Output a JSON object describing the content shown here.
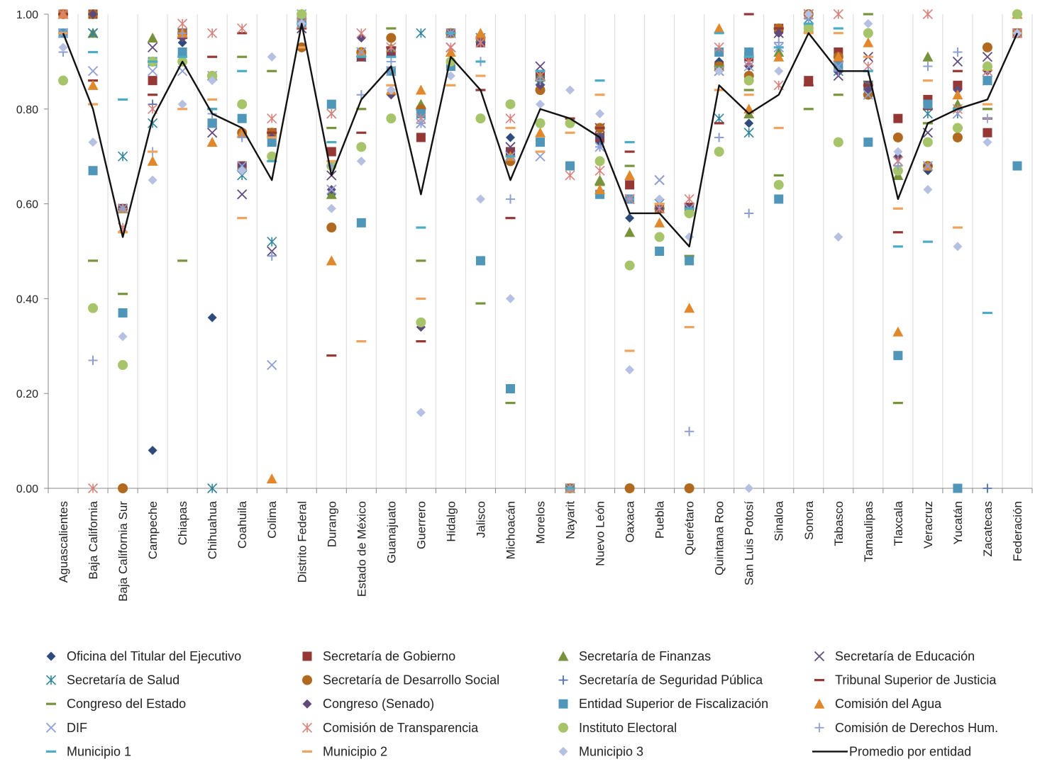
{
  "chart_data": {
    "type": "scatter",
    "title": "",
    "xlabel": "",
    "ylabel": "",
    "ylim": [
      0,
      1
    ],
    "yticks": [
      "0.00",
      "0.20",
      "0.40",
      "0.60",
      "0.80",
      "1.00"
    ],
    "ytick_values": [
      0,
      0.2,
      0.4,
      0.6,
      0.8,
      1.0
    ],
    "grid": "vertical separators",
    "legend_position": "bottom",
    "categories": [
      "Aguascalientes",
      "Baja California",
      "Baja California Sur",
      "Campeche",
      "Chiapas",
      "Chihuahua",
      "Coahuila",
      "Colima",
      "Distrito Federal",
      "Durango",
      "Estado de México",
      "Guanajuato",
      "Guerrero",
      "Hidalgo",
      "Jalisco",
      "Michoacán",
      "Morelos",
      "Nayarit",
      "Nuevo León",
      "Oaxaca",
      "Puebla",
      "Querétaro",
      "Quintana Roo",
      "San Luis Potosí",
      "Sinaloa",
      "Sonora",
      "Tabasco",
      "Tamaulipas",
      "Tlaxcala",
      "Veracruz",
      "Yucatán",
      "Zacatecas",
      "Federación"
    ],
    "series": [
      {
        "name": "Oficina del Titular del Ejecutivo",
        "marker": "diamond",
        "color": "#2f4b7c",
        "values": [
          0.96,
          1.0,
          0.59,
          0.08,
          0.94,
          0.36,
          0.68,
          0.74,
          1.0,
          0.62,
          0.95,
          0.83,
          0.34,
          0.96,
          0.94,
          0.74,
          0.86,
          0.0,
          0.73,
          0.57,
          0.59,
          0.59,
          0.9,
          0.77,
          0.96,
          1.0,
          0.88,
          0.83,
          0.74,
          0.67,
          0.85,
          0.93,
          0.96
        ]
      },
      {
        "name": "Secretaría de Gobierno",
        "marker": "square",
        "color": "#953735",
        "values": [
          1.0,
          1.0,
          0.59,
          0.86,
          0.96,
          0.77,
          0.68,
          0.75,
          0.99,
          0.71,
          0.91,
          0.92,
          0.74,
          0.96,
          0.94,
          0.71,
          0.87,
          0.0,
          0.74,
          0.64,
          0.59,
          0.59,
          0.89,
          0.91,
          0.97,
          0.86,
          0.92,
          0.85,
          0.78,
          0.82,
          0.85,
          0.75,
          0.96
        ]
      },
      {
        "name": "Secretaría de Finanzas",
        "marker": "triangle",
        "color": "#77933c",
        "values": [
          1.0,
          0.96,
          0.59,
          0.95,
          0.96,
          0.87,
          0.68,
          0.75,
          1.0,
          0.62,
          0.92,
          0.93,
          0.81,
          0.96,
          0.95,
          0.7,
          0.87,
          0.0,
          0.65,
          0.54,
          0.59,
          0.59,
          0.89,
          0.79,
          0.92,
          0.97,
          0.89,
          0.84,
          0.66,
          0.91,
          0.81,
          0.89,
          1.0
        ]
      },
      {
        "name": "Secretaría de Educación",
        "marker": "x",
        "color": "#604a7b",
        "values": [
          0.96,
          0.96,
          0.59,
          0.93,
          0.96,
          0.75,
          0.62,
          0.5,
          0.97,
          0.66,
          0.91,
          0.92,
          0.77,
          0.93,
          0.94,
          0.72,
          0.89,
          0.0,
          0.76,
          0.61,
          0.65,
          0.59,
          0.88,
          0.9,
          0.96,
          1.0,
          0.87,
          0.91,
          0.69,
          0.75,
          0.9,
          0.91,
          0.96
        ]
      },
      {
        "name": "Secretaría de Salud",
        "marker": "asterisk",
        "color": "#31859c",
        "values": [
          0.96,
          0.96,
          0.7,
          0.77,
          0.96,
          0.0,
          0.66,
          0.52,
          0.98,
          0.79,
          0.92,
          0.88,
          0.96,
          0.96,
          0.95,
          0.7,
          0.86,
          0.0,
          0.75,
          0.61,
          0.6,
          0.59,
          0.78,
          0.75,
          0.93,
          0.99,
          0.88,
          0.85,
          0.69,
          0.79,
          0.79,
          0.86,
          0.96
        ]
      },
      {
        "name": "Secretaría de Desarrollo Social",
        "marker": "circle",
        "color": "#b0691e",
        "values": [
          1.0,
          1.0,
          0.0,
          0.9,
          0.96,
          0.87,
          0.75,
          0.75,
          0.93,
          0.55,
          0.92,
          0.95,
          0.8,
          0.96,
          0.95,
          0.69,
          0.84,
          0.0,
          0.76,
          0.0,
          0.59,
          0.0,
          0.89,
          0.87,
          0.97,
          1.0,
          0.91,
          0.83,
          0.74,
          0.68,
          0.74,
          0.93,
          0.96
        ]
      },
      {
        "name": "Secretaría de Seguridad Pública",
        "marker": "plus",
        "color": "#4f6fb2",
        "values": [
          0.92,
          0.27,
          0.59,
          0.81,
          0.96,
          0.79,
          0.74,
          0.49,
          0.98,
          0.68,
          0.83,
          0.9,
          0.77,
          0.96,
          0.9,
          0.61,
          0.86,
          0.0,
          0.72,
          0.61,
          0.6,
          0.12,
          0.74,
          0.58,
          0.94,
          0.99,
          0.88,
          0.88,
          0.68,
          0.89,
          0.92,
          0.0,
          0.96
        ]
      },
      {
        "name": "Tribunal Superior de Justicia",
        "marker": "dash",
        "color": "#953735",
        "values": [
          1.0,
          0.86,
          0.59,
          0.83,
          0.95,
          0.91,
          0.96,
          0.75,
          0.97,
          0.28,
          0.75,
          0.93,
          0.31,
          0.96,
          0.84,
          0.57,
          0.88,
          0.78,
          0.76,
          0.71,
          0.59,
          0.6,
          0.77,
          1.0,
          0.97,
          0.85,
          0.9,
          0.85,
          0.54,
          0.8,
          0.88,
          0.78,
          0.96
        ]
      },
      {
        "name": "Congreso del Estado",
        "marker": "dash",
        "color": "#77933c",
        "values": [
          0.96,
          0.48,
          0.41,
          0.9,
          0.48,
          0.8,
          0.91,
          0.88,
          1.0,
          0.76,
          0.8,
          0.97,
          0.48,
          0.96,
          0.39,
          0.18,
          0.86,
          0.0,
          0.64,
          0.68,
          0.59,
          0.49,
          0.89,
          0.84,
          0.66,
          0.8,
          0.83,
          1.0,
          0.18,
          0.77,
          0.76,
          0.8,
          1.0
        ]
      },
      {
        "name": "Congreso (Senado)",
        "marker": "diamond",
        "color": "#604a7b",
        "values": [
          0.96,
          1.0,
          0.59,
          0.9,
          0.95,
          0.87,
          0.68,
          0.74,
          1.0,
          0.63,
          0.95,
          0.83,
          0.34,
          0.96,
          0.94,
          0.7,
          0.85,
          0.0,
          0.74,
          0.61,
          0.59,
          0.59,
          0.88,
          0.89,
          0.96,
          1.0,
          0.88,
          0.84,
          0.7,
          0.68,
          0.84,
          0.88,
          0.96
        ]
      },
      {
        "name": "Entidad Superior de Fiscalización",
        "marker": "square",
        "color": "#4f96b8",
        "values": [
          0.96,
          0.67,
          0.37,
          0.9,
          0.92,
          0.77,
          0.78,
          0.73,
          0.98,
          0.81,
          0.56,
          0.88,
          0.79,
          0.89,
          0.48,
          0.21,
          0.73,
          0.68,
          0.62,
          0.61,
          0.5,
          0.48,
          0.92,
          0.92,
          0.61,
          0.97,
          0.89,
          0.73,
          0.28,
          0.81,
          0.0,
          0.86,
          0.68
        ]
      },
      {
        "name": "Comisión del Agua",
        "marker": "triangle",
        "color": "#e1882d",
        "values": [
          1.0,
          0.85,
          0.59,
          0.69,
          0.96,
          0.73,
          0.75,
          0.02,
          1.0,
          0.48,
          0.92,
          0.84,
          0.84,
          0.92,
          0.96,
          0.7,
          0.75,
          0.0,
          0.63,
          0.66,
          0.56,
          0.38,
          0.97,
          0.8,
          0.91,
          0.97,
          0.91,
          0.94,
          0.33,
          0.68,
          0.83,
          0.89,
          1.0
        ]
      },
      {
        "name": "DIF",
        "marker": "x",
        "color": "#8ea0d4",
        "values": [
          0.96,
          0.88,
          0.59,
          0.88,
          0.88,
          0.87,
          0.68,
          0.26,
          1.0,
          0.63,
          0.92,
          0.88,
          0.77,
          0.96,
          0.94,
          0.7,
          0.7,
          0.0,
          0.72,
          0.61,
          0.65,
          0.59,
          0.88,
          0.89,
          0.93,
          1.0,
          0.89,
          0.83,
          0.69,
          0.68,
          0.79,
          0.88,
          0.96
        ]
      },
      {
        "name": "Comisión de Transparencia",
        "marker": "asterisk",
        "color": "#d9827d",
        "values": [
          1.0,
          0.0,
          0.55,
          0.8,
          0.98,
          0.96,
          0.97,
          0.78,
          0.98,
          0.79,
          0.96,
          0.93,
          0.78,
          0.93,
          0.94,
          0.78,
          0.87,
          0.66,
          0.67,
          0.61,
          0.59,
          0.61,
          0.93,
          0.9,
          0.85,
          1.0,
          1.0,
          0.89,
          0.69,
          1.0,
          0.8,
          0.88,
          0.96
        ]
      },
      {
        "name": "Instituto Electoral",
        "marker": "circle",
        "color": "#a6c46a",
        "values": [
          0.86,
          0.38,
          0.26,
          0.9,
          0.9,
          0.87,
          0.81,
          0.7,
          1.0,
          0.68,
          0.72,
          0.78,
          0.35,
          0.9,
          0.78,
          0.81,
          0.77,
          0.77,
          0.69,
          0.47,
          0.53,
          0.58,
          0.71,
          0.86,
          0.64,
          0.97,
          0.73,
          0.96,
          0.67,
          0.73,
          0.76,
          0.89,
          1.0
        ]
      },
      {
        "name": "Comisión de Derechos Hum.",
        "marker": "plus",
        "color": "#8ea0d4",
        "values": [
          0.92,
          0.27,
          0.59,
          0.71,
          0.96,
          0.79,
          0.74,
          0.49,
          0.98,
          0.68,
          0.83,
          0.9,
          0.77,
          0.96,
          0.9,
          0.61,
          0.86,
          0.0,
          0.72,
          0.61,
          0.6,
          0.12,
          0.74,
          0.58,
          0.94,
          0.99,
          0.88,
          0.88,
          0.68,
          0.89,
          0.92,
          0.78,
          0.96
        ]
      },
      {
        "name": "Municipio 1",
        "marker": "dash",
        "color": "#4bacc6",
        "values": [
          0.96,
          0.92,
          0.82,
          0.9,
          0.91,
          0.8,
          0.88,
          0.69,
          0.98,
          0.73,
          0.91,
          0.91,
          0.55,
          0.96,
          0.9,
          0.7,
          0.88,
          0.0,
          0.86,
          0.73,
          0.6,
          0.59,
          0.96,
          0.91,
          0.93,
          0.98,
          0.97,
          0.88,
          0.51,
          0.52,
          0.8,
          0.37,
          0.96
        ]
      },
      {
        "name": "Municipio 2",
        "marker": "dash",
        "color": "#f0a35c",
        "values": [
          0.96,
          0.81,
          0.54,
          0.71,
          0.8,
          0.82,
          0.57,
          0.74,
          0.93,
          0.69,
          0.31,
          0.85,
          0.4,
          0.85,
          0.87,
          0.76,
          0.71,
          0.75,
          0.83,
          0.29,
          0.6,
          0.34,
          0.84,
          0.83,
          0.76,
          0.96,
          0.96,
          0.91,
          0.59,
          0.86,
          0.55,
          0.81,
          0.96
        ]
      },
      {
        "name": "Municipio 3",
        "marker": "diamond",
        "color": "#b5c0e2",
        "values": [
          0.93,
          0.73,
          0.32,
          0.65,
          0.81,
          0.86,
          0.67,
          0.91,
          0.98,
          0.59,
          0.69,
          0.84,
          0.16,
          0.87,
          0.61,
          0.4,
          0.81,
          0.84,
          0.79,
          0.25,
          0.61,
          0.53,
          0.88,
          0.0,
          0.88,
          1.0,
          0.53,
          0.98,
          0.71,
          0.63,
          0.51,
          0.73,
          0.96
        ]
      }
    ],
    "line_series": {
      "name": "Promedio por entidad",
      "marker": "line",
      "color": "#111111",
      "values": [
        0.96,
        0.8,
        0.53,
        0.78,
        0.9,
        0.79,
        0.76,
        0.65,
        0.98,
        0.66,
        0.82,
        0.89,
        0.62,
        0.91,
        0.84,
        0.65,
        0.8,
        0.78,
        0.74,
        0.58,
        0.58,
        0.51,
        0.85,
        0.79,
        0.83,
        0.96,
        0.88,
        0.88,
        0.61,
        0.77,
        0.8,
        0.82,
        0.96
      ]
    }
  }
}
